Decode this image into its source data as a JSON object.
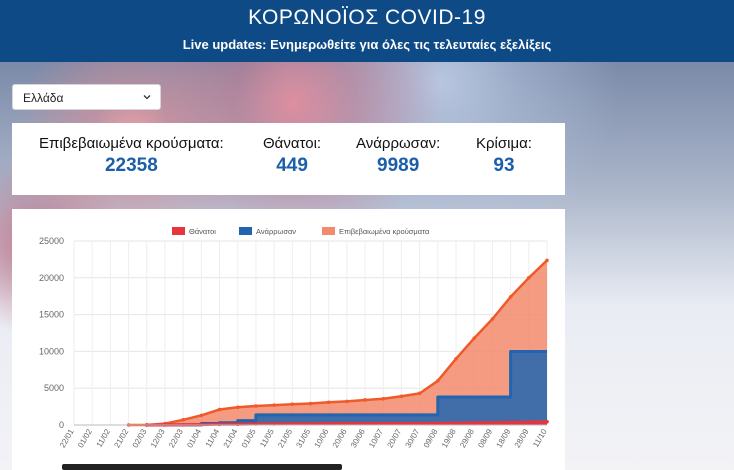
{
  "header": {
    "title": "ΚΟΡΩΝΟΪΟΣ COVID-19",
    "subtitle": "Live updates: Ενημερωθείτε για όλες τις τελευταίες εξελίξεις"
  },
  "country_select": {
    "selected": "Ελλάδα"
  },
  "stats": [
    {
      "label": "Επιβεβαιωμένα κρούσματα:",
      "value": "22358"
    },
    {
      "label": "Θάνατοι:",
      "value": "449"
    },
    {
      "label": "Ανάρρωσαν:",
      "value": "9989"
    },
    {
      "label": "Κρίσιμα:",
      "value": "93"
    }
  ],
  "colors": {
    "header_bg": "#0e4a86",
    "value_blue": "#1b5faa",
    "deaths": "#e8343c",
    "recovered": "#2165b0",
    "confirmed_line": "#ef5a2a",
    "confirmed_fill": "#f28a6c"
  },
  "chart_data": {
    "type": "area",
    "legend": [
      "Θάνατοι",
      "Ανάρρωσαν",
      "Επιβεβαιωμένα κρούσματα"
    ],
    "legend_placement": "top-center",
    "ylim": [
      0,
      25000
    ],
    "y_ticks": [
      "0",
      "5000",
      "10000",
      "15000",
      "20000",
      "25000"
    ],
    "categories": [
      "22/01",
      "01/02",
      "11/02",
      "21/02",
      "02/03",
      "12/03",
      "22/03",
      "01/04",
      "11/04",
      "21/04",
      "01/05",
      "11/05",
      "21/05",
      "31/05",
      "10/06",
      "20/06",
      "30/06",
      "10/07",
      "20/07",
      "30/07",
      "09/08",
      "19/08",
      "29/08",
      "08/09",
      "18/09",
      "28/09",
      "11/10"
    ],
    "series": [
      {
        "name": "Επιβεβαιωμένα κρούσματα",
        "values": [
          0,
          0,
          0,
          0,
          5,
          190,
          700,
          1300,
          2100,
          2400,
          2580,
          2700,
          2830,
          2920,
          3090,
          3200,
          3400,
          3560,
          3900,
          4300,
          6000,
          9000,
          11800,
          14400,
          17400,
          20000,
          22358
        ]
      },
      {
        "name": "Ανάρρωσαν",
        "values": [
          0,
          0,
          0,
          0,
          0,
          19,
          19,
          200,
          300,
          600,
          1374,
          1374,
          1374,
          1374,
          1374,
          1374,
          1374,
          1374,
          1374,
          1374,
          3804,
          3804,
          3804,
          3804,
          9989,
          9989,
          9989
        ]
      },
      {
        "name": "Θάνατοι",
        "values": [
          0,
          0,
          0,
          0,
          0,
          5,
          22,
          50,
          90,
          110,
          140,
          150,
          165,
          175,
          185,
          190,
          193,
          200,
          205,
          210,
          220,
          250,
          280,
          300,
          350,
          400,
          449
        ]
      }
    ]
  }
}
